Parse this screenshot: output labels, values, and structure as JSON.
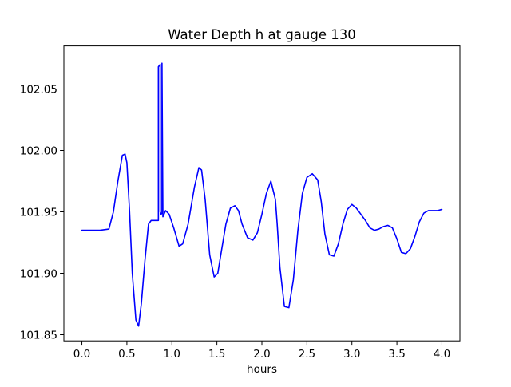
{
  "chart_data": {
    "type": "line",
    "title": "Water Depth h at gauge 130",
    "xlabel": "hours",
    "ylabel": "",
    "xlim": [
      -0.2,
      4.2
    ],
    "ylim": [
      101.845,
      102.085
    ],
    "xticks": [
      0.0,
      0.5,
      1.0,
      1.5,
      2.0,
      2.5,
      3.0,
      3.5,
      4.0
    ],
    "xtick_labels": [
      "0.0",
      "0.5",
      "1.0",
      "1.5",
      "2.0",
      "2.5",
      "3.0",
      "3.5",
      "4.0"
    ],
    "yticks": [
      101.85,
      101.9,
      101.95,
      102.0,
      102.05
    ],
    "ytick_labels": [
      "101.85",
      "101.90",
      "101.95",
      "102.00",
      "102.05"
    ],
    "grid": false,
    "series": [
      {
        "color": "#0000ff",
        "x": [
          0.0,
          0.1,
          0.2,
          0.3,
          0.35,
          0.4,
          0.45,
          0.48,
          0.5,
          0.53,
          0.56,
          0.6,
          0.63,
          0.66,
          0.7,
          0.74,
          0.77,
          0.8,
          0.85,
          0.85,
          0.86,
          0.87,
          0.87,
          0.88,
          0.89,
          0.89,
          0.9,
          0.93,
          0.97,
          1.02,
          1.08,
          1.12,
          1.18,
          1.25,
          1.3,
          1.33,
          1.37,
          1.42,
          1.47,
          1.51,
          1.55,
          1.6,
          1.65,
          1.7,
          1.74,
          1.78,
          1.84,
          1.9,
          1.95,
          2.0,
          2.05,
          2.1,
          2.15,
          2.17,
          2.2,
          2.25,
          2.3,
          2.35,
          2.4,
          2.45,
          2.5,
          2.56,
          2.62,
          2.66,
          2.7,
          2.75,
          2.8,
          2.85,
          2.9,
          2.95,
          3.0,
          3.05,
          3.1,
          3.15,
          3.2,
          3.25,
          3.3,
          3.35,
          3.4,
          3.45,
          3.5,
          3.55,
          3.6,
          3.65,
          3.7,
          3.75,
          3.8,
          3.85,
          3.9,
          3.95,
          4.0
        ],
        "y": [
          101.935,
          101.935,
          101.935,
          101.936,
          101.95,
          101.975,
          101.996,
          101.997,
          101.99,
          101.95,
          101.9,
          101.862,
          101.857,
          101.875,
          101.91,
          101.94,
          101.943,
          101.943,
          101.943,
          102.068,
          102.069,
          102.07,
          101.95,
          101.948,
          101.949,
          102.071,
          101.946,
          101.951,
          101.948,
          101.937,
          101.922,
          101.924,
          101.94,
          101.97,
          101.986,
          101.984,
          101.96,
          101.915,
          101.897,
          101.9,
          101.918,
          101.94,
          101.953,
          101.955,
          101.951,
          101.94,
          101.929,
          101.927,
          101.933,
          101.948,
          101.965,
          101.975,
          101.96,
          101.94,
          101.905,
          101.873,
          101.872,
          101.895,
          101.935,
          101.965,
          101.978,
          101.981,
          101.976,
          101.958,
          101.932,
          101.915,
          101.914,
          101.924,
          101.94,
          101.952,
          101.956,
          101.953,
          101.948,
          101.943,
          101.937,
          101.935,
          101.936,
          101.938,
          101.939,
          101.937,
          101.928,
          101.917,
          101.916,
          101.92,
          101.93,
          101.942,
          101.949,
          101.951,
          101.951,
          101.951,
          101.952
        ]
      }
    ]
  }
}
